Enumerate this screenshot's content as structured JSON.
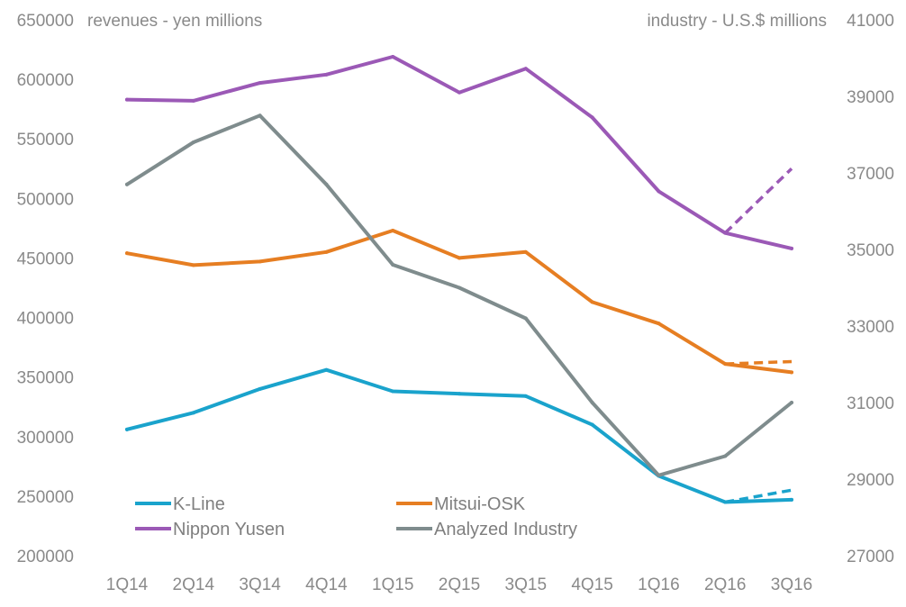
{
  "chart_data": {
    "type": "line",
    "categories": [
      "1Q14",
      "2Q14",
      "3Q14",
      "4Q14",
      "1Q15",
      "2Q15",
      "3Q15",
      "4Q15",
      "1Q16",
      "2Q16",
      "3Q16"
    ],
    "left_axis": {
      "label": "revenues - yen millions",
      "ylim": [
        200000,
        650000
      ],
      "ticks": [
        200000,
        250000,
        300000,
        350000,
        400000,
        450000,
        500000,
        550000,
        600000,
        650000
      ],
      "tick_labels": [
        "200000",
        "250000",
        "300000",
        "350000",
        "400000",
        "450000",
        "500000",
        "550000",
        "600000",
        "650000"
      ]
    },
    "right_axis": {
      "label": "industry - U.S.$ millions",
      "ylim": [
        27000,
        41000
      ],
      "ticks": [
        27000,
        29000,
        31000,
        33000,
        35000,
        37000,
        39000,
        41000
      ],
      "tick_labels": [
        "27000",
        "29000",
        "31000",
        "33000",
        "35000",
        "37000",
        "39000",
        "41000"
      ]
    },
    "series": [
      {
        "name": "Nippon Yusen",
        "color": "#9b59b6",
        "axis": "left",
        "values": [
          583000,
          582000,
          597000,
          604000,
          619000,
          589000,
          609000,
          568000,
          506000,
          471000,
          458000
        ],
        "projection": {
          "from_index": 9,
          "to_index": 10,
          "values": [
            471000,
            525000
          ]
        }
      },
      {
        "name": "Mitsui-OSK",
        "color": "#e67e22",
        "axis": "left",
        "values": [
          454000,
          444000,
          447000,
          455000,
          473000,
          450000,
          455000,
          413000,
          395000,
          361000,
          354000
        ],
        "projection": {
          "from_index": 9,
          "to_index": 10,
          "values": [
            361000,
            363000
          ]
        }
      },
      {
        "name": "K-Line",
        "color": "#1aa3cc",
        "axis": "left",
        "values": [
          306000,
          320000,
          340000,
          356000,
          338000,
          336000,
          334000,
          310000,
          267000,
          245000,
          247000
        ],
        "projection": {
          "from_index": 9,
          "to_index": 10,
          "values": [
            245000,
            255000
          ]
        }
      },
      {
        "name": "Analyzed Industry",
        "color": "#7f8c8d",
        "axis": "right",
        "values": [
          36700,
          37800,
          38500,
          36700,
          34600,
          34000,
          33200,
          31000,
          29100,
          29600,
          31000
        ]
      }
    ],
    "legend": {
      "position": "bottom-left",
      "entries": [
        "K-Line",
        "Mitsui-OSK",
        "Nippon Yusen",
        "Analyzed Industry"
      ]
    }
  }
}
